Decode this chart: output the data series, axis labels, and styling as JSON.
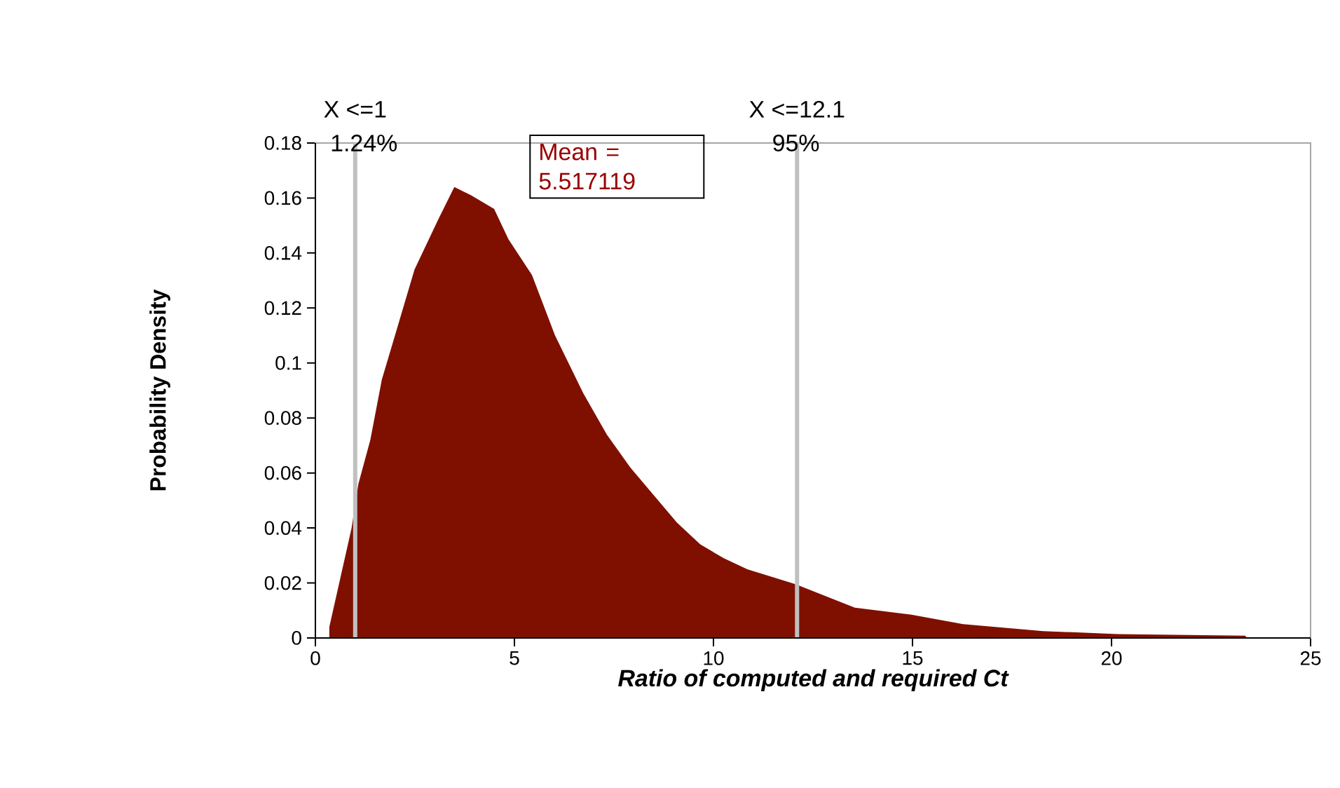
{
  "chart_data": {
    "type": "area",
    "xlabel": "Ratio of computed and required Ct",
    "ylabel": "Probability Density",
    "color": "#7f1000",
    "x": [
      0.35,
      0.91,
      1.08,
      1.38,
      1.67,
      2.02,
      2.49,
      3.08,
      3.49,
      3.91,
      4.49,
      4.85,
      5.44,
      6.02,
      6.73,
      7.32,
      7.91,
      8.61,
      9.08,
      9.67,
      10.26,
      10.85,
      11.96,
      12.07,
      13.55,
      14.97,
      16.27,
      18.28,
      20.17,
      23.36,
      23.4
    ],
    "values": [
      0.004,
      0.04,
      0.056,
      0.072,
      0.094,
      0.111,
      0.134,
      0.152,
      0.164,
      0.161,
      0.156,
      0.145,
      0.132,
      0.11,
      0.089,
      0.074,
      0.062,
      0.05,
      0.042,
      0.034,
      0.029,
      0.025,
      0.02,
      0.0195,
      0.011,
      0.0085,
      0.005,
      0.0025,
      0.0014,
      0.0008,
      0
    ],
    "xlim": [
      0,
      25
    ],
    "ylim": [
      0,
      0.18
    ],
    "xticks": [
      0,
      5,
      10,
      15,
      20,
      25
    ],
    "yticks": [
      0,
      0.02,
      0.04,
      0.06,
      0.08,
      0.1,
      0.12,
      0.14,
      0.16,
      0.18
    ],
    "ref_lines": [
      {
        "axis": "x",
        "value": 1,
        "label": "X <=1",
        "color": "#c0c0c0"
      },
      {
        "axis": "x",
        "value": 12.1,
        "label": "X <=12.1",
        "color": "#c0c0c0"
      }
    ],
    "annotations": [
      {
        "text": "1.24%",
        "x": 1,
        "y": 0.18
      },
      {
        "text": "95%",
        "x": 12.1,
        "y": 0.18
      },
      "Mean = 5.517119"
    ]
  }
}
